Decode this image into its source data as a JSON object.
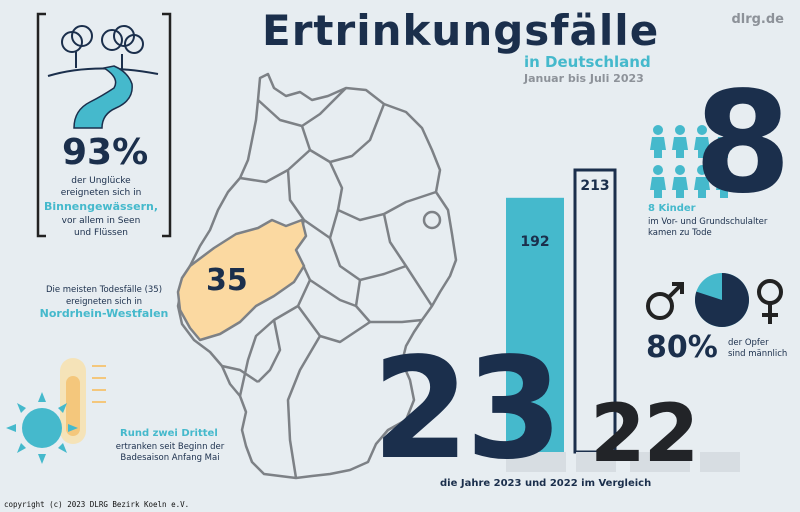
{
  "header": {
    "title": "Ertrinkungsfälle",
    "subtitle": "in Deutschland",
    "period": "Januar bis Juli 2023",
    "site": "dlrg.de"
  },
  "inland": {
    "percent": "93%",
    "line1": "der Unglücke",
    "line2": "ereigneten sich in",
    "highlight": "Binnengewässern,",
    "line3": "vor allem in Seen",
    "line4": "und Flüssen"
  },
  "region": {
    "text1": "Die meisten Todesfälle (35)",
    "text2": "ereigneten sich in",
    "name": "Nordrhein-Westfalen",
    "value": "35"
  },
  "comparison": {
    "value_2023": 192,
    "value_2022": 213,
    "label_2023": "192",
    "label_2022": "213",
    "year_2023": "23",
    "year_2022": "22",
    "caption": "die Jahre 2023 und 2022 im Vergleich"
  },
  "children": {
    "number": "8",
    "label": "8 Kinder",
    "text1": "im Vor- und Grundschulalter",
    "text2": "kamen zu Tode"
  },
  "gender": {
    "percent": "80%",
    "fraction_male": 0.8,
    "text1": "der Opfer",
    "text2": "sind männlich"
  },
  "season": {
    "headline": "Rund zwei Drittel",
    "text1": "ertranken seit Beginn der",
    "text2": "Badesaison Anfang Mai"
  },
  "footer": {
    "copyright": "copyright (c) 2023 DLRG Bezirk Koeln e.V."
  },
  "colors": {
    "navy": "#1b2f4c",
    "teal": "#45b9cc",
    "nrw": "#fbd9a1",
    "background": "#e7edf1"
  }
}
